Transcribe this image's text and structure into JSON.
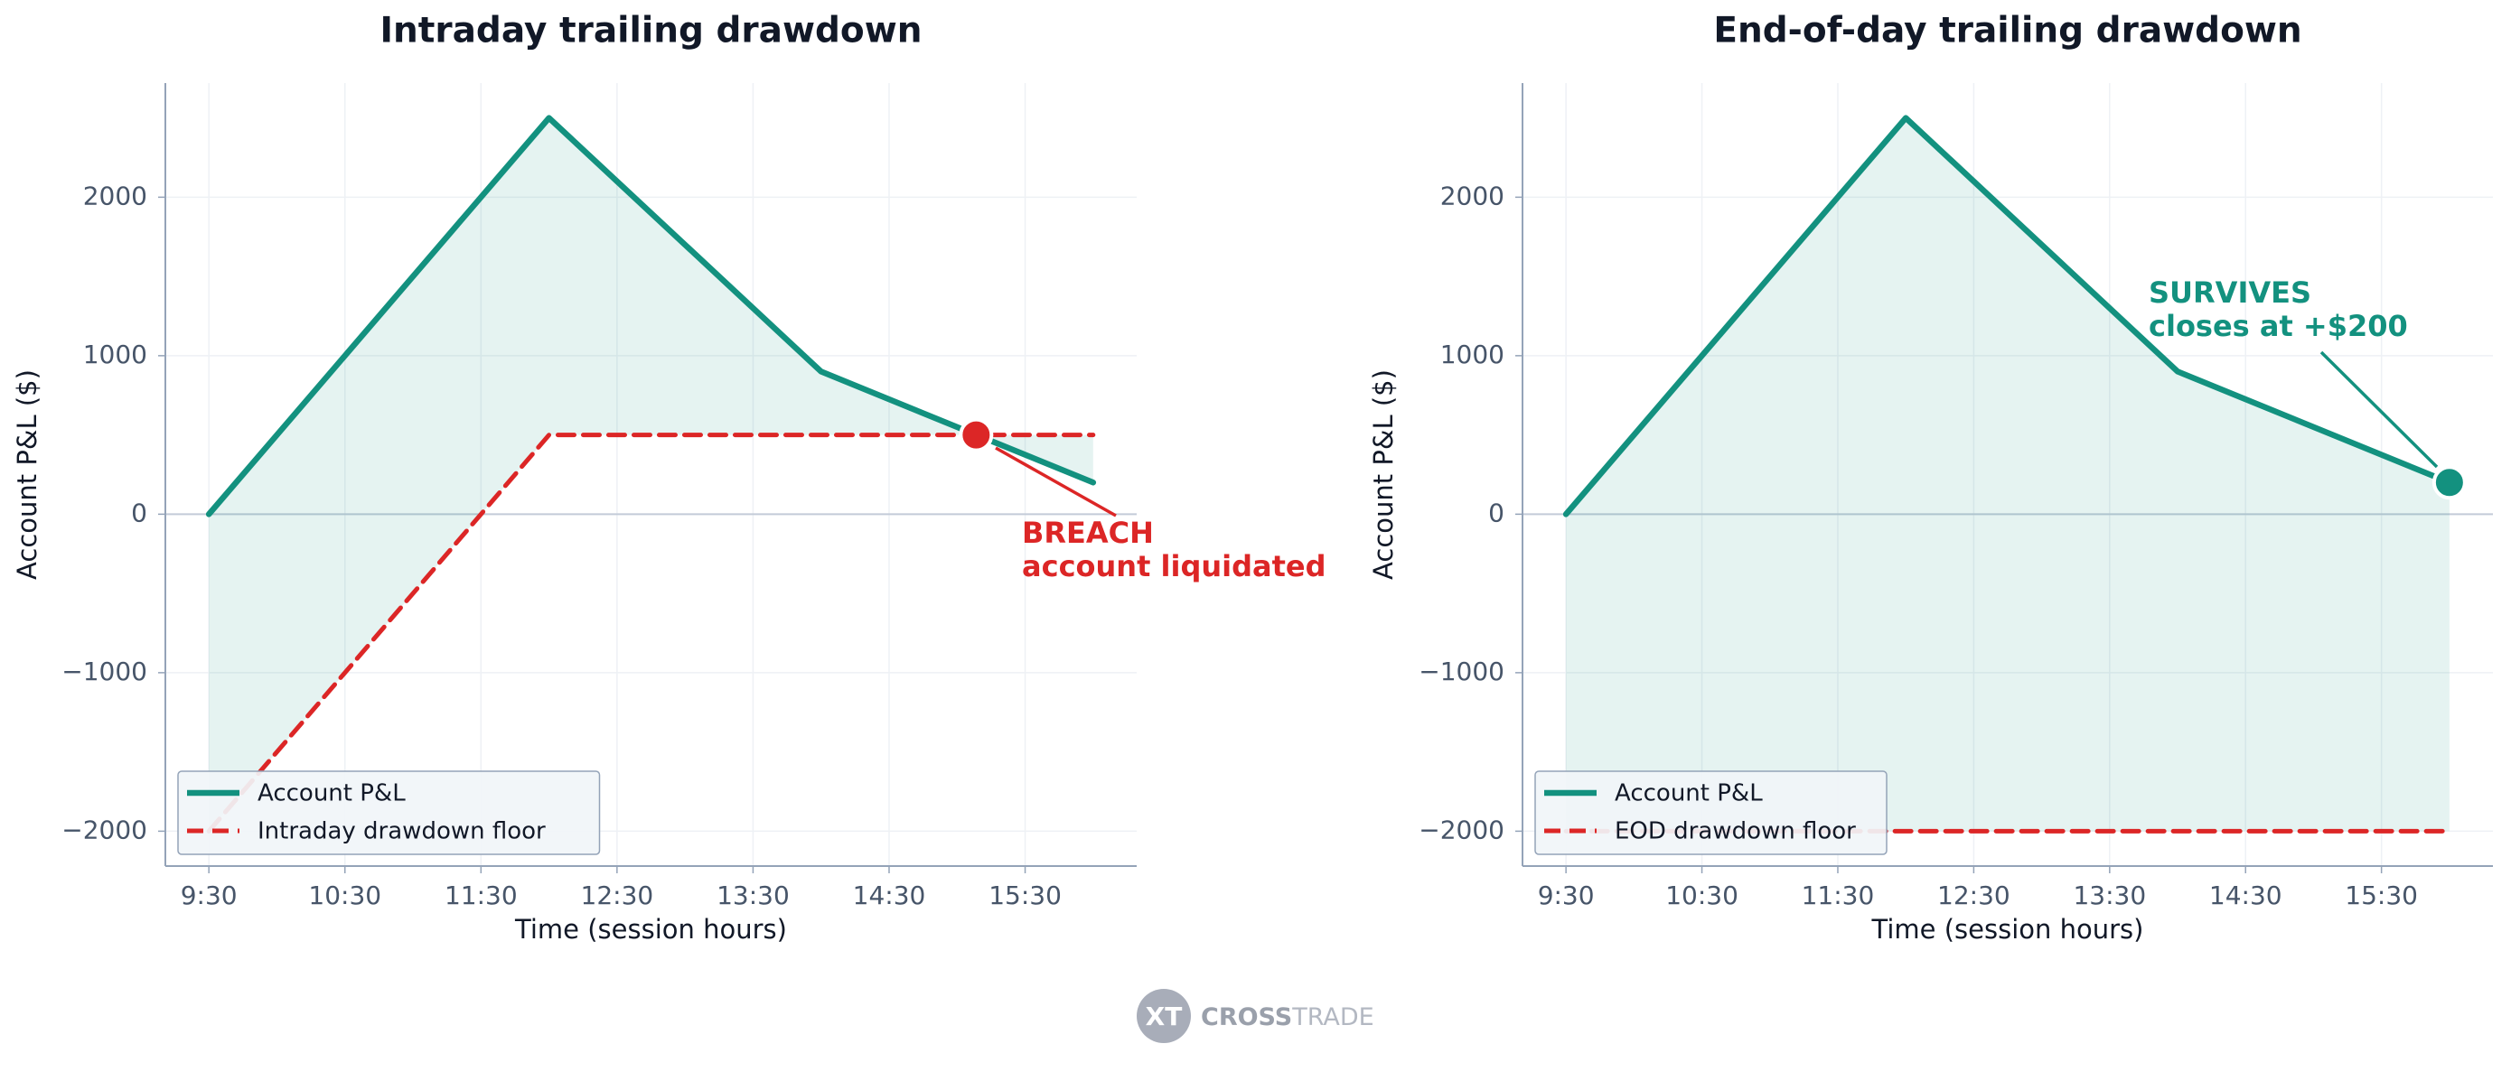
{
  "chart_data": [
    {
      "type": "line",
      "title": "Intraday trailing drawdown",
      "xlabel": "Time (session hours)",
      "ylabel": "Account P&L ($)",
      "x": [
        9.5,
        12,
        14,
        16
      ],
      "series": [
        {
          "name": "Account P&L",
          "color": "#13917f",
          "style": "solid",
          "values": [
            0,
            2500,
            900,
            200
          ]
        },
        {
          "name": "Intraday drawdown floor",
          "color": "#dc2626",
          "style": "dashed",
          "values": [
            -2000,
            500,
            500,
            500
          ]
        }
      ],
      "fill_color": "#13917f",
      "markers": [
        {
          "x": 15.14,
          "y": 500,
          "color": "#dc2626"
        }
      ],
      "annotation": {
        "lines": [
          "BREACH",
          "account liquidated"
        ],
        "color": "#dc2626"
      },
      "xlim": [
        9.18,
        16.32
      ],
      "ylim": [
        -2220,
        2720
      ],
      "xticks": [
        {
          "value": 9.5,
          "label": "9:30"
        },
        {
          "value": 10.5,
          "label": "10:30"
        },
        {
          "value": 11.5,
          "label": "11:30"
        },
        {
          "value": 12.5,
          "label": "12:30"
        },
        {
          "value": 13.5,
          "label": "13:30"
        },
        {
          "value": 14.5,
          "label": "14:30"
        },
        {
          "value": 15.5,
          "label": "15:30"
        }
      ],
      "yticks": [
        {
          "value": -2000,
          "label": "−2000"
        },
        {
          "value": -1000,
          "label": "−1000"
        },
        0,
        1000,
        2000
      ],
      "grid": true,
      "zero_line": true,
      "legend": "lower left"
    },
    {
      "type": "line",
      "title": "End-of-day trailing drawdown",
      "xlabel": "Time (session hours)",
      "ylabel": "Account P&L ($)",
      "x": [
        9.5,
        12,
        14,
        16
      ],
      "series": [
        {
          "name": "Account P&L",
          "color": "#13917f",
          "style": "solid",
          "values": [
            0,
            2500,
            900,
            200
          ]
        },
        {
          "name": "EOD drawdown floor",
          "color": "#dc2626",
          "style": "dashed",
          "values": [
            -2000,
            -2000,
            -2000,
            -2000
          ]
        }
      ],
      "fill_color": "#13917f",
      "markers": [
        {
          "x": 16,
          "y": 200,
          "color": "#13917f"
        }
      ],
      "annotation": {
        "lines": [
          "SURVIVES",
          "closes at +$200"
        ],
        "color": "#13917f"
      },
      "xlim": [
        9.18,
        16.32
      ],
      "ylim": [
        -2220,
        2720
      ],
      "xticks": [
        {
          "value": 9.5,
          "label": "9:30"
        },
        {
          "value": 10.5,
          "label": "10:30"
        },
        {
          "value": 11.5,
          "label": "11:30"
        },
        {
          "value": 12.5,
          "label": "12:30"
        },
        {
          "value": 13.5,
          "label": "13:30"
        },
        {
          "value": 14.5,
          "label": "14:30"
        },
        {
          "value": 15.5,
          "label": "15:30"
        }
      ],
      "yticks": [
        {
          "value": -2000,
          "label": "−2000"
        },
        {
          "value": -1000,
          "label": "−1000"
        },
        0,
        1000,
        2000
      ],
      "grid": true,
      "zero_line": true,
      "legend": "lower left"
    }
  ],
  "logo": {
    "mark": "XT",
    "brand_bold": "CROSS",
    "brand_light": "TRADE"
  }
}
